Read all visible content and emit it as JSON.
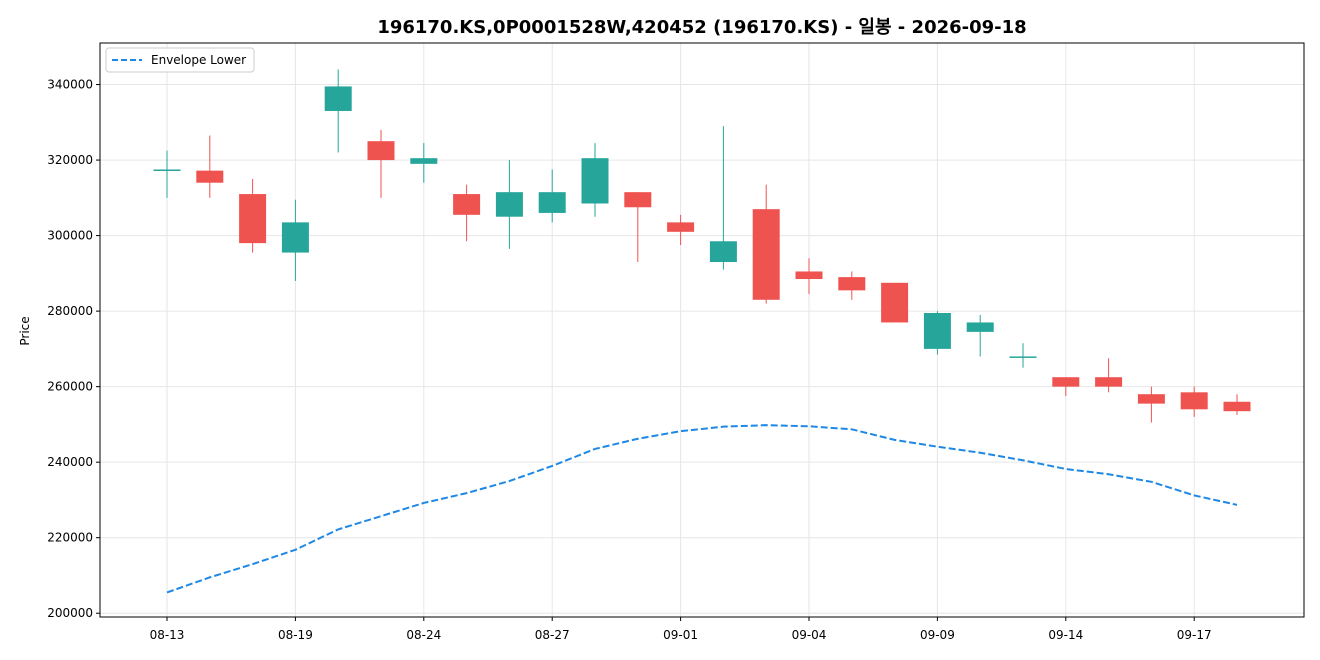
{
  "chart_data": {
    "type": "candlestick",
    "title": "196170.KS,0P0001528W,420452 (196170.KS) - 일봉 - 2026-09-18",
    "ylabel": "Price",
    "xlabel": "",
    "ylim": [
      199000,
      351000
    ],
    "grid": true,
    "legend_position": "top-left",
    "y_ticks": [
      200000,
      220000,
      240000,
      260000,
      280000,
      300000,
      320000,
      340000
    ],
    "x_tick_labels": [
      {
        "index": 0,
        "label": "08-13"
      },
      {
        "index": 3,
        "label": "08-19"
      },
      {
        "index": 6,
        "label": "08-24"
      },
      {
        "index": 9,
        "label": "08-27"
      },
      {
        "index": 12,
        "label": "09-01"
      },
      {
        "index": 15,
        "label": "09-04"
      },
      {
        "index": 18,
        "label": "09-09"
      },
      {
        "index": 21,
        "label": "09-14"
      },
      {
        "index": 24,
        "label": "09-17"
      }
    ],
    "up_color": "#26a69a",
    "down_color": "#ef5350",
    "candles": [
      {
        "open": 317500,
        "high": 322500,
        "low": 310000,
        "close": 317500
      },
      {
        "open": 317200,
        "high": 326500,
        "low": 310000,
        "close": 314000
      },
      {
        "open": 311000,
        "high": 315000,
        "low": 295500,
        "close": 298000
      },
      {
        "open": 295500,
        "high": 309500,
        "low": 288000,
        "close": 303500
      },
      {
        "open": 333000,
        "high": 344000,
        "low": 322000,
        "close": 339500
      },
      {
        "open": 325000,
        "high": 328000,
        "low": 310000,
        "close": 320000
      },
      {
        "open": 319000,
        "high": 324500,
        "low": 314000,
        "close": 320500
      },
      {
        "open": 311000,
        "high": 313500,
        "low": 298500,
        "close": 305500
      },
      {
        "open": 305000,
        "high": 320000,
        "low": 296500,
        "close": 311500
      },
      {
        "open": 306000,
        "high": 317500,
        "low": 303500,
        "close": 311500
      },
      {
        "open": 308500,
        "high": 324500,
        "low": 305000,
        "close": 320500
      },
      {
        "open": 311500,
        "high": 311500,
        "low": 293000,
        "close": 307500
      },
      {
        "open": 303500,
        "high": 305500,
        "low": 297500,
        "close": 301000
      },
      {
        "open": 293000,
        "high": 329000,
        "low": 291000,
        "close": 298500
      },
      {
        "open": 307000,
        "high": 313500,
        "low": 282000,
        "close": 283000
      },
      {
        "open": 290500,
        "high": 294000,
        "low": 284500,
        "close": 288500
      },
      {
        "open": 289000,
        "high": 290500,
        "low": 283000,
        "close": 285500
      },
      {
        "open": 287500,
        "high": 287500,
        "low": 277000,
        "close": 277000
      },
      {
        "open": 270000,
        "high": 280000,
        "low": 268500,
        "close": 279500
      },
      {
        "open": 274500,
        "high": 279000,
        "low": 268000,
        "close": 277000
      },
      {
        "open": 268000,
        "high": 271500,
        "low": 265000,
        "close": 268000
      },
      {
        "open": 262500,
        "high": 262500,
        "low": 257500,
        "close": 260000
      },
      {
        "open": 262500,
        "high": 267500,
        "low": 258500,
        "close": 260000
      },
      {
        "open": 258000,
        "high": 260000,
        "low": 250500,
        "close": 255500
      },
      {
        "open": 258500,
        "high": 260000,
        "low": 252000,
        "close": 254000
      },
      {
        "open": 256000,
        "high": 258000,
        "low": 252500,
        "close": 253500
      }
    ],
    "series": [
      {
        "name": "Envelope Lower",
        "color": "#1f88e5",
        "style": "dashed",
        "values": [
          205500,
          209500,
          213000,
          216800,
          222200,
          225700,
          229200,
          231800,
          235000,
          239000,
          243500,
          246200,
          248200,
          249400,
          249800,
          249500,
          248700,
          245900,
          244100,
          242500,
          240500,
          238200,
          236800,
          234800,
          231200,
          228700
        ]
      }
    ]
  }
}
